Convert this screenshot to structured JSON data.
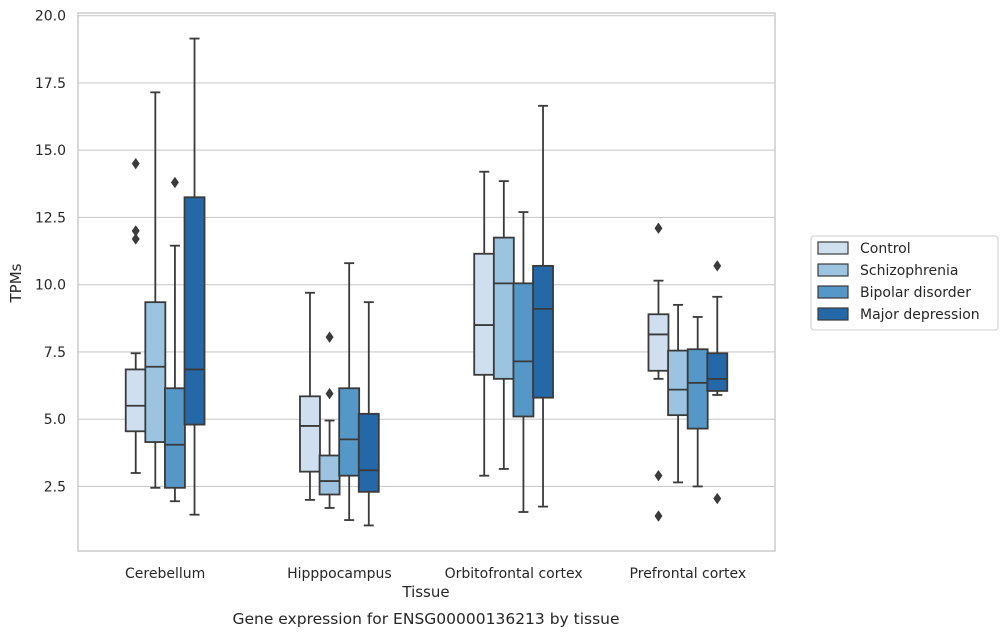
{
  "chart_data": {
    "type": "boxplot",
    "xlabel": "Tissue",
    "ylabel": "TPMs",
    "caption": "Gene expression for ENSG00000136213 by tissue",
    "ylim": [
      0.1,
      20.1
    ],
    "yticks": [
      2.5,
      5.0,
      7.5,
      10.0,
      12.5,
      15.0,
      17.5,
      20.0
    ],
    "ytick_labels": [
      "2.5",
      "5.0",
      "7.5",
      "10.0",
      "12.5",
      "15.0",
      "17.5",
      "20.0"
    ],
    "grid": "horizontal",
    "legend_placement": "right",
    "categories": [
      "Cerebellum",
      "Hipppocampus",
      "Orbitofrontal cortex",
      "Prefrontal cortex"
    ],
    "series": [
      {
        "name": "Control",
        "color": "#d0dfef",
        "boxes": [
          {
            "min": 3.0,
            "q1": 4.55,
            "median": 5.5,
            "q3": 6.85,
            "max": 7.45,
            "outliers": [
              14.5,
              12.0,
              11.7
            ]
          },
          {
            "min": 2.0,
            "q1": 3.05,
            "median": 4.75,
            "q3": 5.85,
            "max": 9.7,
            "outliers": []
          },
          {
            "min": 2.9,
            "q1": 6.65,
            "median": 8.5,
            "q3": 11.15,
            "max": 14.2,
            "outliers": []
          },
          {
            "min": 6.5,
            "q1": 6.8,
            "median": 8.15,
            "q3": 8.9,
            "max": 10.15,
            "outliers": [
              12.1,
              2.9,
              1.4
            ]
          }
        ]
      },
      {
        "name": "Schizophrenia",
        "color": "#9cc3df",
        "boxes": [
          {
            "min": 2.45,
            "q1": 4.15,
            "median": 6.95,
            "q3": 9.35,
            "max": 17.15,
            "outliers": []
          },
          {
            "min": 1.7,
            "q1": 2.2,
            "median": 2.7,
            "q3": 3.65,
            "max": 4.95,
            "outliers": [
              8.05,
              5.95
            ]
          },
          {
            "min": 3.15,
            "q1": 6.5,
            "median": 10.05,
            "q3": 11.75,
            "max": 13.85,
            "outliers": []
          },
          {
            "min": 2.65,
            "q1": 5.15,
            "median": 6.1,
            "q3": 7.55,
            "max": 9.25,
            "outliers": []
          }
        ]
      },
      {
        "name": "Bipolar disorder",
        "color": "#5597c6",
        "boxes": [
          {
            "min": 1.95,
            "q1": 2.45,
            "median": 4.05,
            "q3": 6.15,
            "max": 11.45,
            "outliers": [
              13.8
            ]
          },
          {
            "min": 1.25,
            "q1": 2.9,
            "median": 4.25,
            "q3": 6.15,
            "max": 10.8,
            "outliers": []
          },
          {
            "min": 1.55,
            "q1": 5.1,
            "median": 7.15,
            "q3": 10.05,
            "max": 12.7,
            "outliers": []
          },
          {
            "min": 2.5,
            "q1": 4.65,
            "median": 6.35,
            "q3": 7.6,
            "max": 8.8,
            "outliers": []
          }
        ]
      },
      {
        "name": "Major depression",
        "color": "#2568a7",
        "boxes": [
          {
            "min": 1.45,
            "q1": 4.8,
            "median": 6.85,
            "q3": 13.25,
            "max": 19.15,
            "outliers": []
          },
          {
            "min": 1.05,
            "q1": 2.3,
            "median": 3.1,
            "q3": 5.2,
            "max": 9.35,
            "outliers": []
          },
          {
            "min": 1.75,
            "q1": 5.8,
            "median": 9.1,
            "q3": 10.7,
            "max": 16.65,
            "outliers": []
          },
          {
            "min": 5.9,
            "q1": 6.05,
            "median": 6.5,
            "q3": 7.45,
            "max": 9.55,
            "outliers": [
              10.7,
              2.05
            ]
          }
        ]
      }
    ]
  }
}
